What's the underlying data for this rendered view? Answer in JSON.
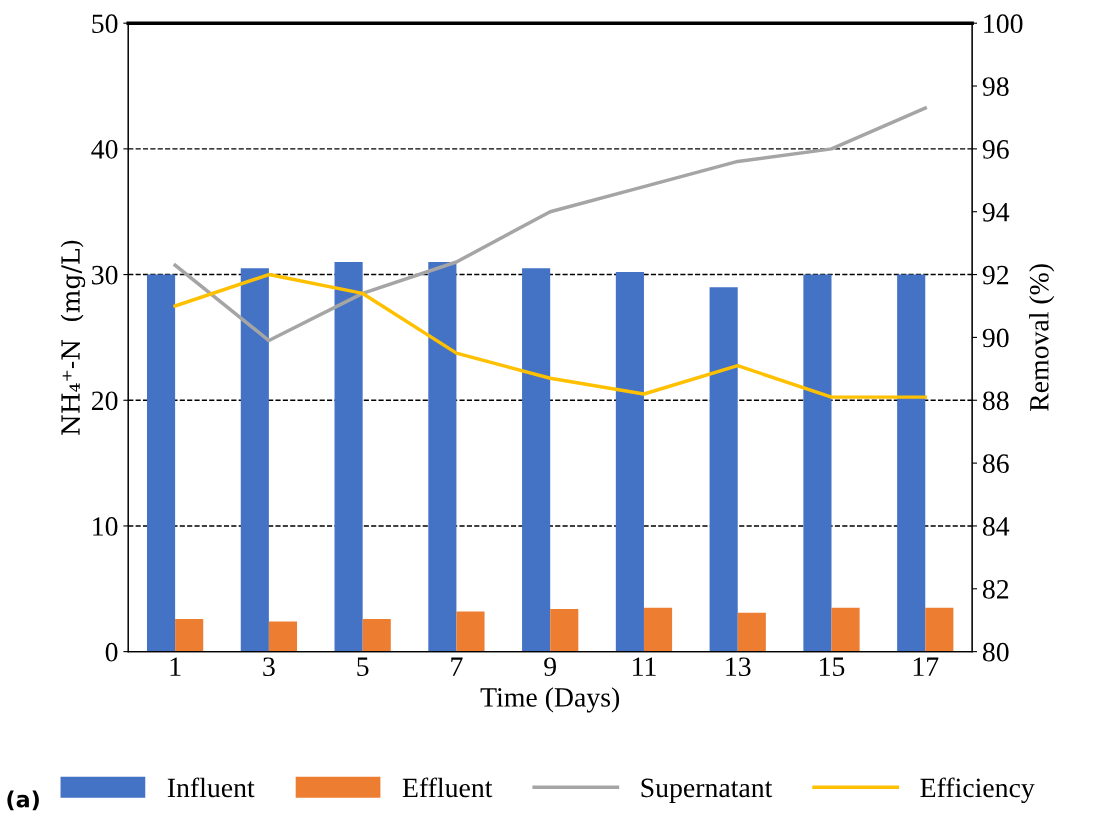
{
  "chart_data": {
    "type": "bar",
    "xlabel": "Time (Days)",
    "ylabel": "NH₄⁺-N  (mg/L)",
    "y2label": "Removal (%)",
    "categories": [
      "1",
      "3",
      "5",
      "7",
      "9",
      "11",
      "13",
      "15",
      "17"
    ],
    "series": [
      {
        "name": "Influent",
        "color": "#4472c4",
        "values": [
          30,
          30.5,
          31,
          31,
          30.5,
          30.2,
          29,
          30,
          30
        ]
      },
      {
        "name": "Effluent",
        "color": "#ed7d31",
        "values": [
          2.6,
          2.4,
          2.6,
          3.2,
          3.4,
          3.5,
          3.1,
          3.5,
          3.5
        ]
      },
      {
        "name": "Supernatant",
        "type": "line",
        "axis": "y2",
        "color": "#a5a5a5",
        "values": [
          92.3,
          89.9,
          91.4,
          92.4,
          94.0,
          94.8,
          95.6,
          96.0,
          97.3
        ]
      },
      {
        "name": "Efficiency",
        "type": "line",
        "axis": "y2",
        "color": "#ffc000",
        "values": [
          91.0,
          92.0,
          91.4,
          89.5,
          88.7,
          88.2,
          89.1,
          88.1,
          88.1
        ]
      }
    ],
    "ylim": [
      0,
      50
    ],
    "yticks": [
      0,
      10,
      20,
      30,
      40,
      50
    ],
    "y2lim": [
      80,
      100
    ],
    "y2ticks": [
      80,
      82,
      84,
      86,
      88,
      90,
      92,
      94,
      96,
      98,
      100
    ],
    "grid": "y",
    "legend": "bottom",
    "marker": "none",
    "line_style": "solid",
    "annotations": [
      "(a)"
    ]
  }
}
